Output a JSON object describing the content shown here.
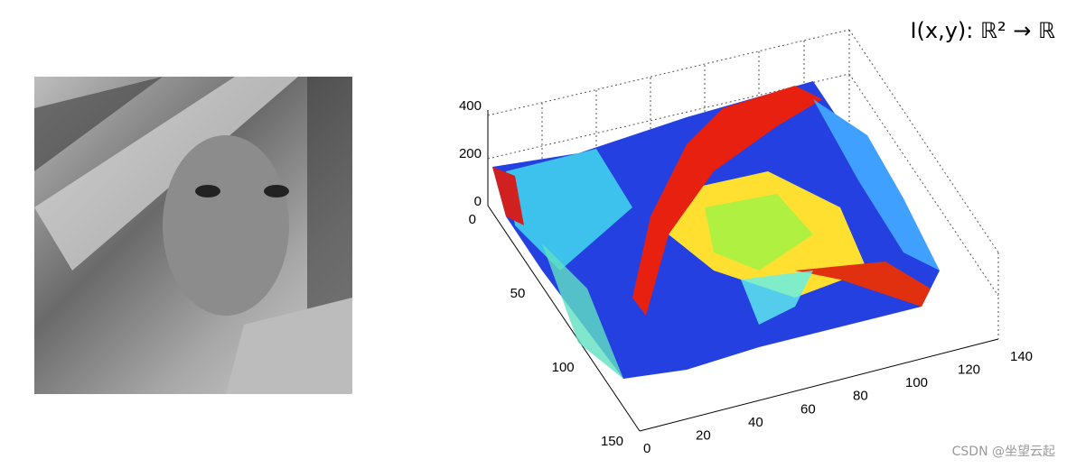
{
  "formula": "I(x,y): ℝ² → ℝ",
  "plot": {
    "z_ticks": [
      0,
      200,
      400
    ],
    "y_ticks": [
      0,
      50,
      100,
      150
    ],
    "x_ticks": [
      0,
      20,
      40,
      60,
      80,
      100,
      120,
      140
    ]
  },
  "watermark": "CSDN @坐望云起"
}
